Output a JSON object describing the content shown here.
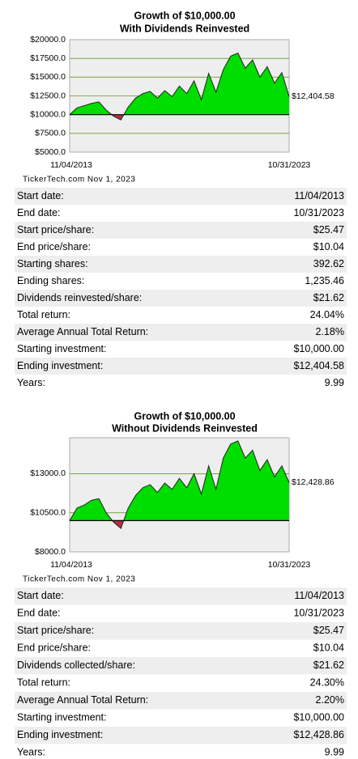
{
  "chart_data": [
    {
      "type": "area",
      "title": "Growth of $10,000.00",
      "subtitle": "With Dividends Reinvested",
      "categories": [
        "11/04/2013",
        null,
        null,
        null,
        null,
        null,
        null,
        null,
        null,
        null,
        null,
        null,
        null,
        null,
        null,
        null,
        null,
        null,
        null,
        null,
        null,
        null,
        null,
        null,
        null,
        null,
        null,
        null,
        null,
        null,
        "10/31/2023"
      ],
      "values": [
        10000,
        10900,
        11200,
        11500,
        11700,
        10600,
        9800,
        9300,
        11000,
        12200,
        12800,
        13100,
        12200,
        13200,
        12400,
        13800,
        12800,
        14500,
        12000,
        15500,
        13000,
        16000,
        17800,
        18200,
        16200,
        17300,
        15000,
        16400,
        14200,
        15600,
        12404.58
      ],
      "value_labels": [
        null,
        null,
        null,
        null,
        null,
        null,
        null,
        null,
        null,
        null,
        null,
        null,
        null,
        null,
        null,
        null,
        null,
        null,
        null,
        null,
        null,
        null,
        null,
        null,
        null,
        null,
        null,
        null,
        null,
        null,
        "$12,404.58"
      ],
      "baseline": 10000,
      "color": "#00dd00",
      "below_color": "#b03040",
      "ylim": [
        5000,
        20000
      ],
      "yticks": [
        {
          "value": 5000,
          "label": "$5000.0"
        },
        {
          "value": 7500,
          "label": "$7500.0"
        },
        {
          "value": 10000,
          "label": "$10000.0"
        },
        {
          "value": 12500,
          "label": "$12500.0"
        },
        {
          "value": 15000,
          "label": "$15000.0"
        },
        {
          "value": 17500,
          "label": "$17500.0"
        },
        {
          "value": 20000,
          "label": "$20000.0"
        }
      ],
      "grid": true,
      "source": "TickerTech.com  Nov 1, 2023"
    },
    {
      "type": "area",
      "title": "Growth of $10,000.00",
      "subtitle": "Without Dividends Reinvested",
      "categories": [
        "11/04/2013",
        null,
        null,
        null,
        null,
        null,
        null,
        null,
        null,
        null,
        null,
        null,
        null,
        null,
        null,
        null,
        null,
        null,
        null,
        null,
        null,
        null,
        null,
        null,
        null,
        null,
        null,
        null,
        null,
        null,
        "10/31/2023"
      ],
      "values": [
        10000,
        10800,
        11000,
        11300,
        11400,
        10500,
        9900,
        9500,
        10800,
        11600,
        12100,
        12300,
        11800,
        12400,
        12000,
        12700,
        12100,
        13000,
        11700,
        13500,
        12000,
        14000,
        14900,
        15100,
        14000,
        14500,
        13200,
        13900,
        12800,
        13500,
        12428.86
      ],
      "value_labels": [
        null,
        null,
        null,
        null,
        null,
        null,
        null,
        null,
        null,
        null,
        null,
        null,
        null,
        null,
        null,
        null,
        null,
        null,
        null,
        null,
        null,
        null,
        null,
        null,
        null,
        null,
        null,
        null,
        null,
        null,
        "$12,428.86"
      ],
      "baseline": 10000,
      "color": "#00dd00",
      "below_color": "#b03040",
      "ylim": [
        8000,
        15300
      ],
      "yticks": [
        {
          "value": 8000,
          "label": "$8000.0"
        },
        {
          "value": 10500,
          "label": "$10500.0"
        },
        {
          "value": 13000,
          "label": "$13000.0"
        }
      ],
      "grid": true,
      "source": "TickerTech.com  Nov 1, 2023"
    }
  ],
  "tables": [
    {
      "rows": [
        [
          "Start date:",
          "11/04/2013"
        ],
        [
          "End date:",
          "10/31/2023"
        ],
        [
          "Start price/share:",
          "$25.47"
        ],
        [
          "End price/share:",
          "$10.04"
        ],
        [
          "Starting shares:",
          "392.62"
        ],
        [
          "Ending shares:",
          "1,235.46"
        ],
        [
          "Dividends reinvested/share:",
          "$21.62"
        ],
        [
          "Total return:",
          "24.04%"
        ],
        [
          "Average Annual Total Return:",
          "2.18%"
        ],
        [
          "Starting investment:",
          "$10,000.00"
        ],
        [
          "Ending investment:",
          "$12,404.58"
        ],
        [
          "Years:",
          "9.99"
        ]
      ]
    },
    {
      "rows": [
        [
          "Start date:",
          "11/04/2013"
        ],
        [
          "End date:",
          "10/31/2023"
        ],
        [
          "Start price/share:",
          "$25.47"
        ],
        [
          "End price/share:",
          "$10.04"
        ],
        [
          "Dividends collected/share:",
          "$21.62"
        ],
        [
          "Total return:",
          "24.30%"
        ],
        [
          "Average Annual Total Return:",
          "2.20%"
        ],
        [
          "Starting investment:",
          "$10,000.00"
        ],
        [
          "Ending investment:",
          "$12,428.86"
        ],
        [
          "Years:",
          "9.99"
        ]
      ]
    }
  ]
}
